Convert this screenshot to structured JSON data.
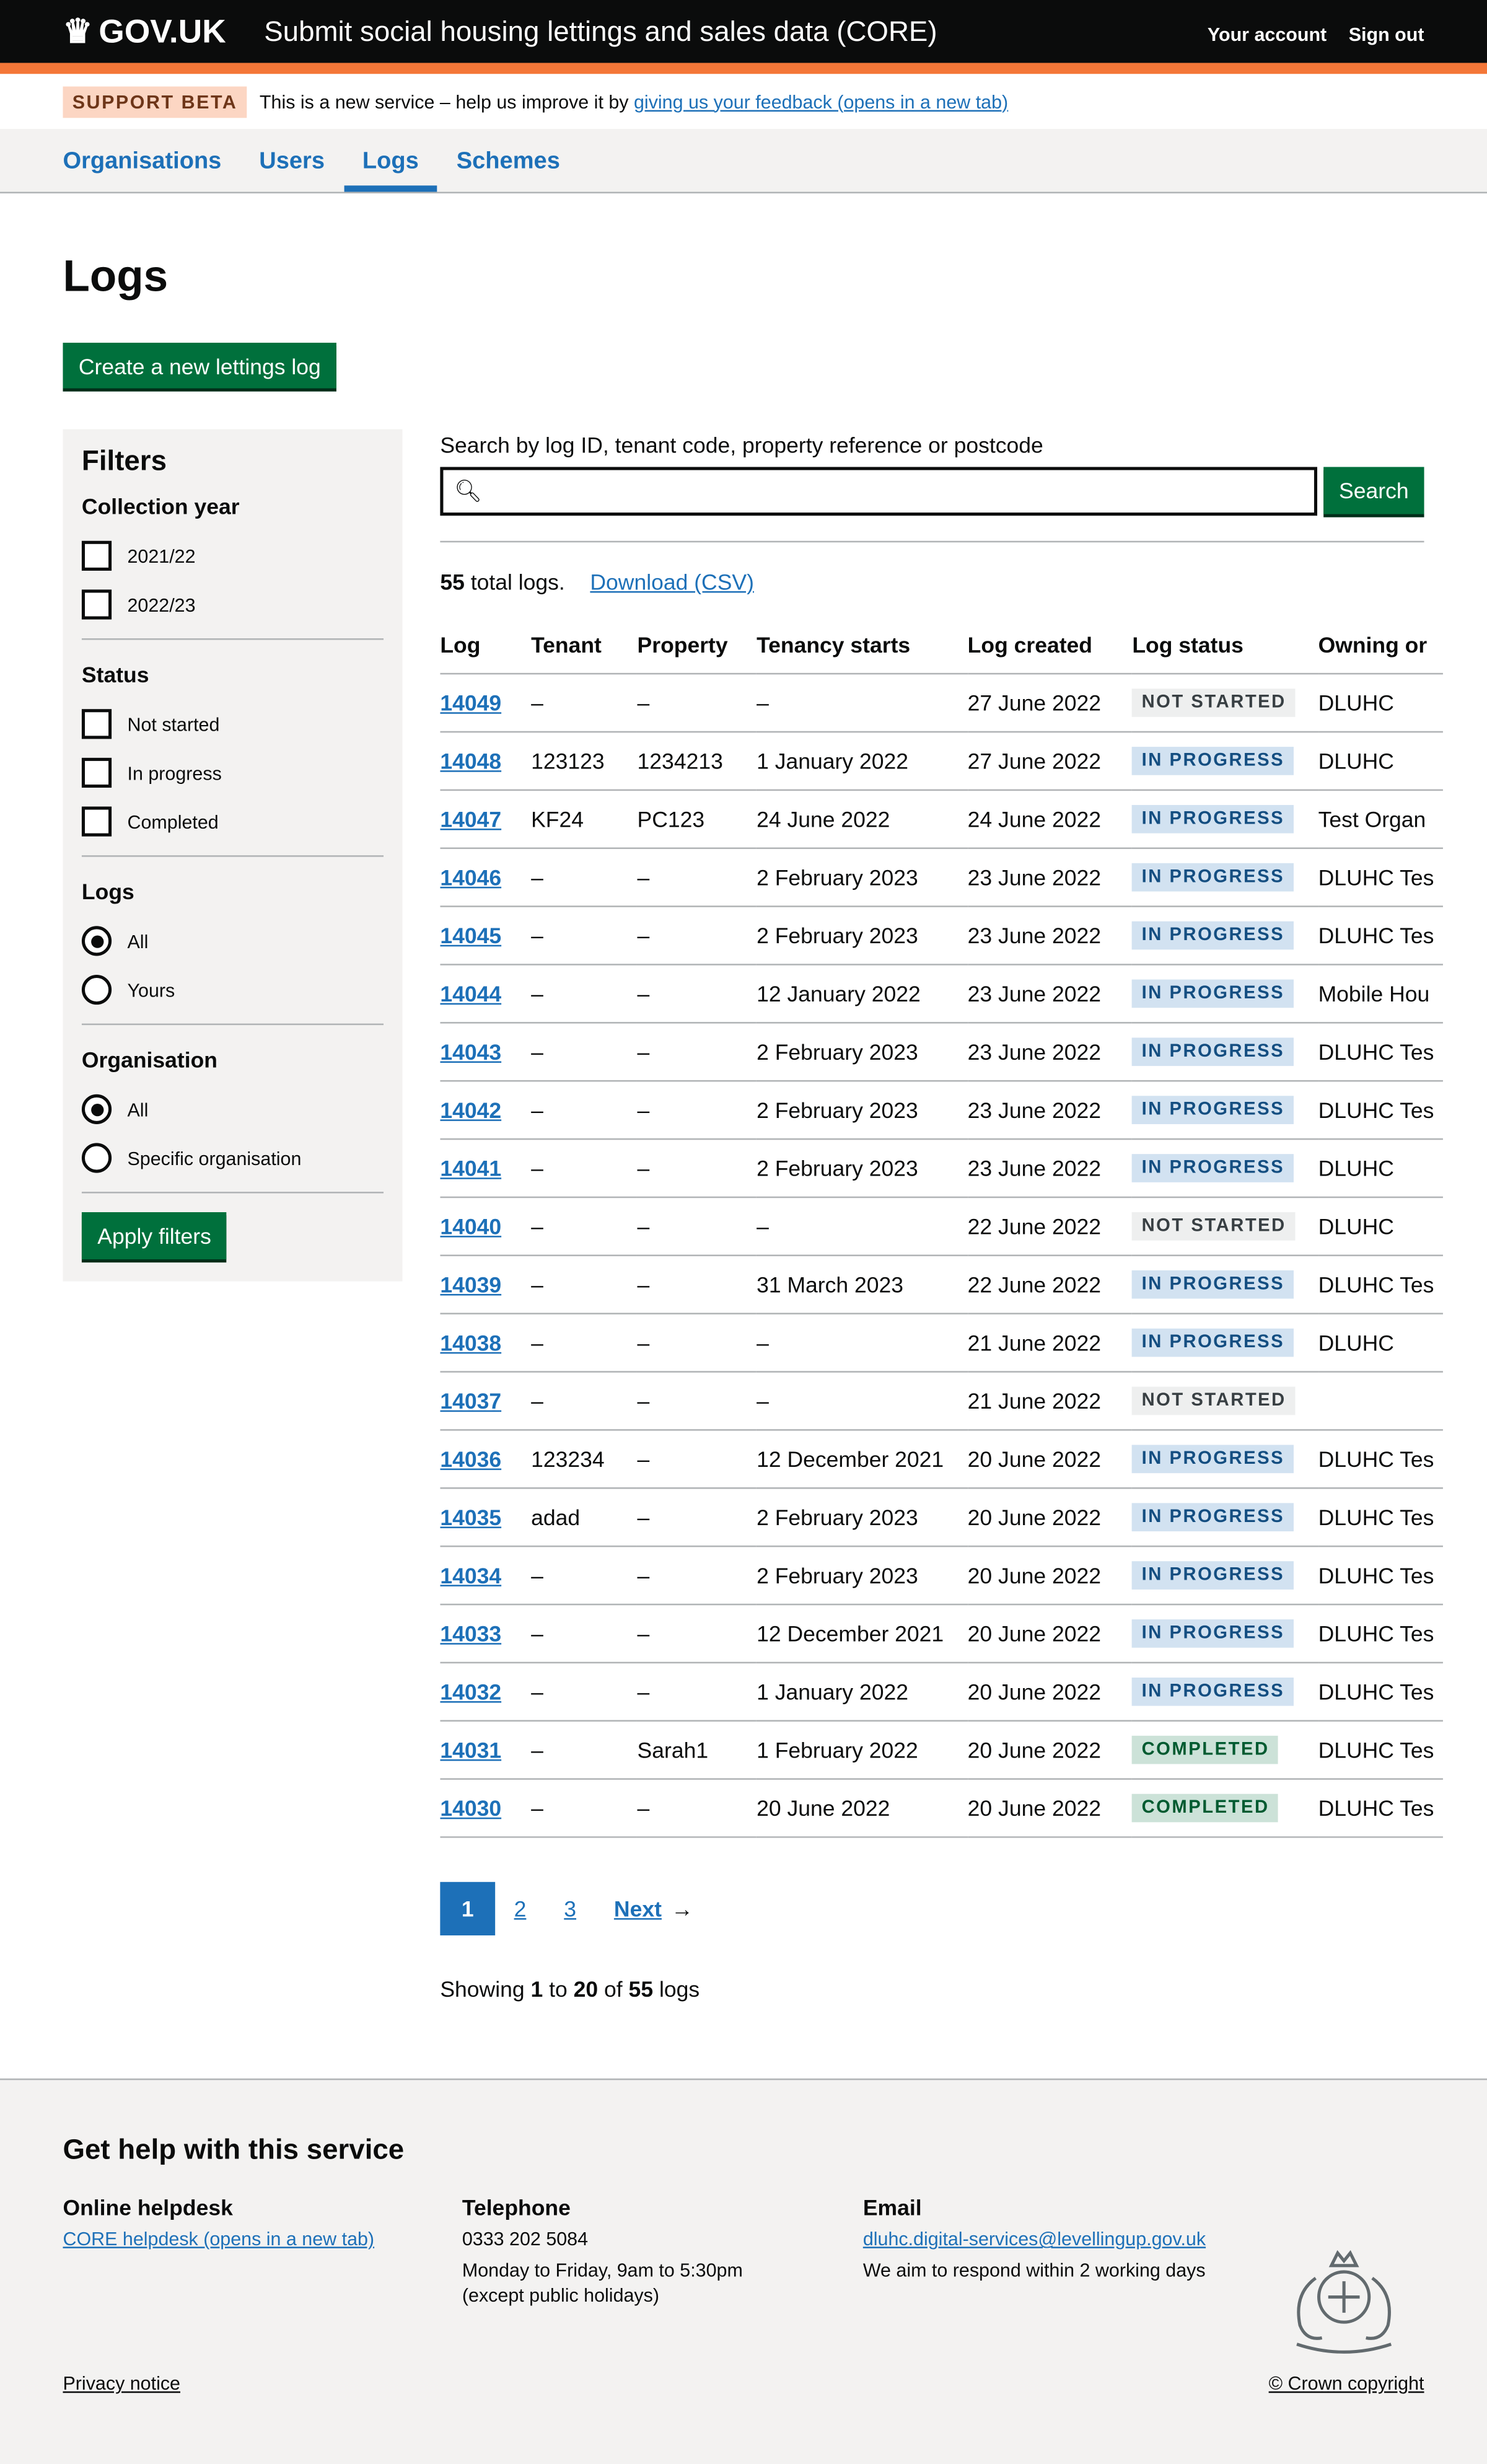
{
  "header": {
    "logo": "GOV.UK",
    "service_name": "Submit social housing lettings and sales data (CORE)",
    "your_account": "Your account",
    "sign_out": "Sign out"
  },
  "banner": {
    "tag": "SUPPORT BETA",
    "text": "This is a new service – help us improve it by",
    "link": "giving us your feedback (opens in a new tab)"
  },
  "nav": {
    "items": [
      {
        "label": "Organisations"
      },
      {
        "label": "Users"
      },
      {
        "label": "Logs",
        "active": true
      },
      {
        "label": "Schemes"
      }
    ]
  },
  "page": {
    "title": "Logs",
    "create_button": "Create a new lettings log"
  },
  "filters": {
    "title": "Filters",
    "collection_year": {
      "label": "Collection year",
      "options": [
        "2021/22",
        "2022/23"
      ]
    },
    "status": {
      "label": "Status",
      "options": [
        "Not started",
        "In progress",
        "Completed"
      ]
    },
    "logs": {
      "label": "Logs",
      "options": [
        "All",
        "Yours"
      ],
      "selected": "All"
    },
    "organisation": {
      "label": "Organisation",
      "options": [
        "All",
        "Specific organisation"
      ],
      "selected": "All"
    },
    "apply_button": "Apply filters"
  },
  "search": {
    "label": "Search by log ID, tenant code, property reference or postcode",
    "value": "",
    "button": "Search"
  },
  "summary": {
    "count": "55",
    "count_suffix": "total logs.",
    "download": "Download (CSV)"
  },
  "table": {
    "headers": [
      "Log",
      "Tenant",
      "Property",
      "Tenancy starts",
      "Log created",
      "Log status",
      "Owning or"
    ],
    "rows": [
      [
        "14049",
        "–",
        "–",
        "–",
        "27 June 2022",
        "NOT STARTED",
        "DLUHC"
      ],
      [
        "14048",
        "123123",
        "1234213",
        "1 January 2022",
        "27 June 2022",
        "IN PROGRESS",
        "DLUHC"
      ],
      [
        "14047",
        "KF24",
        "PC123",
        "24 June 2022",
        "24 June 2022",
        "IN PROGRESS",
        "Test Organ"
      ],
      [
        "14046",
        "–",
        "–",
        "2 February 2023",
        "23 June 2022",
        "IN PROGRESS",
        "DLUHC Tes"
      ],
      [
        "14045",
        "–",
        "–",
        "2 February 2023",
        "23 June 2022",
        "IN PROGRESS",
        "DLUHC Tes"
      ],
      [
        "14044",
        "–",
        "–",
        "12 January 2022",
        "23 June 2022",
        "IN PROGRESS",
        "Mobile Hou"
      ],
      [
        "14043",
        "–",
        "–",
        "2 February 2023",
        "23 June 2022",
        "IN PROGRESS",
        "DLUHC Tes"
      ],
      [
        "14042",
        "–",
        "–",
        "2 February 2023",
        "23 June 2022",
        "IN PROGRESS",
        "DLUHC Tes"
      ],
      [
        "14041",
        "–",
        "–",
        "2 February 2023",
        "23 June 2022",
        "IN PROGRESS",
        "DLUHC"
      ],
      [
        "14040",
        "–",
        "–",
        "–",
        "22 June 2022",
        "NOT STARTED",
        "DLUHC"
      ],
      [
        "14039",
        "–",
        "–",
        "31 March 2023",
        "22 June 2022",
        "IN PROGRESS",
        "DLUHC Tes"
      ],
      [
        "14038",
        "–",
        "–",
        "–",
        "21 June 2022",
        "IN PROGRESS",
        "DLUHC"
      ],
      [
        "14037",
        "–",
        "–",
        "–",
        "21 June 2022",
        "NOT STARTED",
        ""
      ],
      [
        "14036",
        "123234",
        "–",
        "12 December 2021",
        "20 June 2022",
        "IN PROGRESS",
        "DLUHC Tes"
      ],
      [
        "14035",
        "adad",
        "–",
        "2 February 2023",
        "20 June 2022",
        "IN PROGRESS",
        "DLUHC Tes"
      ],
      [
        "14034",
        "–",
        "–",
        "2 February 2023",
        "20 June 2022",
        "IN PROGRESS",
        "DLUHC Tes"
      ],
      [
        "14033",
        "–",
        "–",
        "12 December 2021",
        "20 June 2022",
        "IN PROGRESS",
        "DLUHC Tes"
      ],
      [
        "14032",
        "–",
        "–",
        "1 January 2022",
        "20 June 2022",
        "IN PROGRESS",
        "DLUHC Tes"
      ],
      [
        "14031",
        "–",
        "Sarah1",
        "1 February 2022",
        "20 June 2022",
        "COMPLETED",
        "DLUHC Tes"
      ],
      [
        "14030",
        "–",
        "–",
        "20 June 2022",
        "20 June 2022",
        "COMPLETED",
        "DLUHC Tes"
      ]
    ]
  },
  "status_colors": {
    "NOT STARTED": {
      "bg": "#eeefef",
      "fg": "#383f43"
    },
    "IN PROGRESS": {
      "bg": "#d2e2f1",
      "fg": "#144e81"
    },
    "COMPLETED": {
      "bg": "#cce2d8",
      "fg": "#005a30"
    }
  },
  "pagination": {
    "current": "1",
    "pages": [
      "2",
      "3"
    ],
    "next": "Next"
  },
  "showing": {
    "prefix": "Showing",
    "from": "1",
    "to_word": "to",
    "to": "20",
    "of_word": "of",
    "total": "55",
    "suffix": "logs"
  },
  "footer": {
    "title": "Get help with this service",
    "helpdesk": {
      "title": "Online helpdesk",
      "link": "CORE helpdesk (opens in a new tab)"
    },
    "telephone": {
      "title": "Telephone",
      "number": "0333 202 5084",
      "hours": "Monday to Friday, 9am to 5:30pm",
      "note": "(except public holidays)"
    },
    "email": {
      "title": "Email",
      "address": "dluhc.digital-services@levellingup.gov.uk",
      "note": "We aim to respond within 2 working days"
    },
    "privacy": "Privacy notice",
    "copyright": "© Crown copyright"
  }
}
